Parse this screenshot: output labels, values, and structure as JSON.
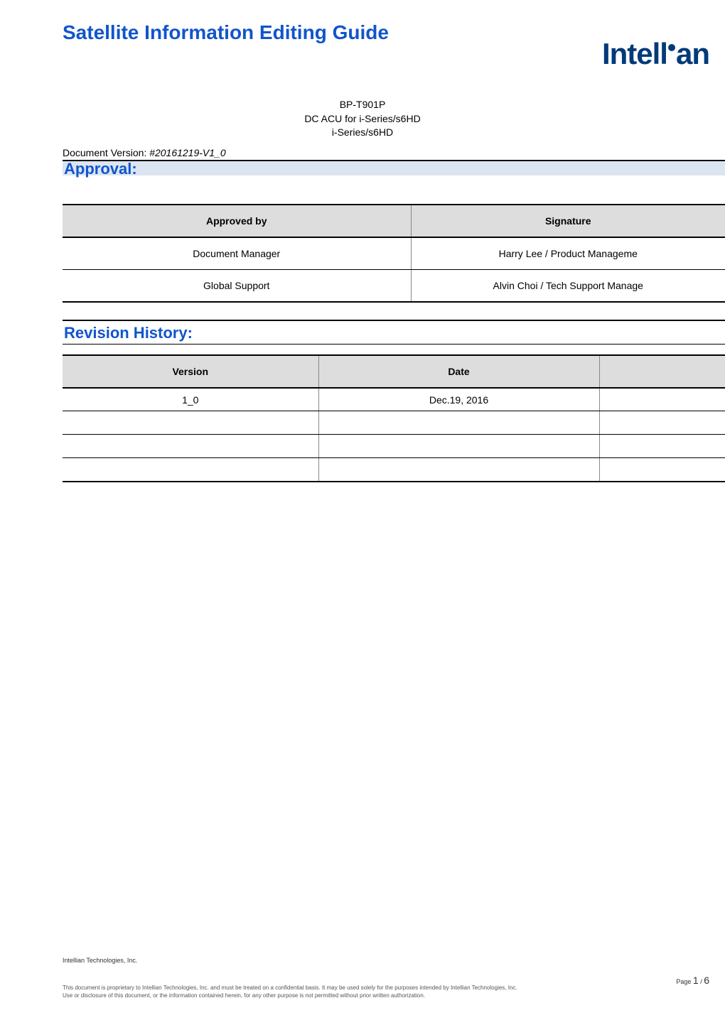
{
  "header": {
    "main_title": "Satellite Information Editing Guide",
    "logo_text_1": "Intell",
    "logo_text_2": "an",
    "subtitle_line1": "BP-T901P",
    "subtitle_line2": "DC ACU for i-Series/s6HD",
    "subtitle_line3": "i-Series/s6HD",
    "doc_version_label": "Document Version: ",
    "doc_version_value": "#20161219-V1_0"
  },
  "approval": {
    "section_title": "Approval:",
    "headers": [
      "Approved by",
      "Signature"
    ],
    "rows": [
      {
        "col1": "Document Manager",
        "col2": "Harry Lee / Product Manageme"
      },
      {
        "col1": "Global Support",
        "col2": "Alvin Choi / Tech Support Manage"
      }
    ]
  },
  "revision": {
    "section_title": "Revision History:",
    "headers": [
      "Version",
      "Date",
      ""
    ],
    "rows": [
      {
        "col1": "1_0",
        "col2": "Dec.19, 2016",
        "col3": ""
      },
      {
        "col1": "",
        "col2": "",
        "col3": ""
      },
      {
        "col1": "",
        "col2": "",
        "col3": ""
      },
      {
        "col1": "",
        "col2": "",
        "col3": ""
      }
    ]
  },
  "footer": {
    "company": "Intellian Technologies, Inc.",
    "page_label": "Page ",
    "page_current": "1",
    "page_sep": " / ",
    "page_total": "6",
    "disclaimer_line1": "This document is proprietary to Intellian Technologies, Inc. and must be treated on a confidential basis. It may be used solely for the purposes intended by Intellian Technologies, Inc.",
    "disclaimer_line2": "Use or disclosure of this document, or the information contained herein, for any other purpose is not permitted without prior written authorization."
  },
  "colors": {
    "title_blue": "#1155cc",
    "logo_blue": "#003a7a",
    "stripe_bg": "#dbe5f2",
    "th_bg": "#dddddd"
  }
}
